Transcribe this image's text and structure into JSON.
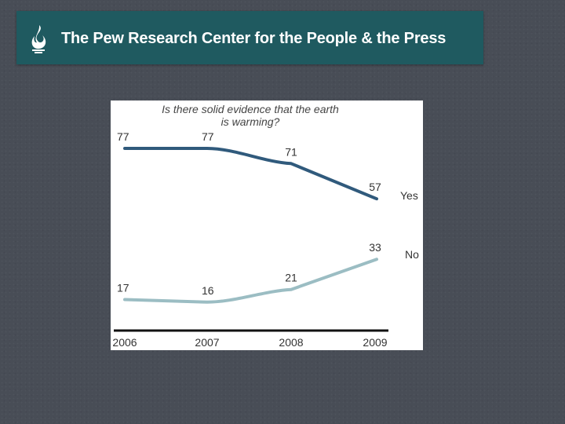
{
  "header": {
    "title": "The Pew Research Center for the People & the Press"
  },
  "chart_data": {
    "type": "line",
    "title": "Is there solid evidence that the earth is warming?",
    "x": [
      "2006",
      "2007",
      "2008",
      "2009"
    ],
    "series": [
      {
        "name": "Yes",
        "values": [
          77,
          77,
          71,
          57
        ],
        "color": "#305a7c"
      },
      {
        "name": "No",
        "values": [
          17,
          16,
          21,
          33
        ],
        "color": "#9bbdc3"
      }
    ],
    "xlabel": "",
    "ylabel": "",
    "ylim": [
      10,
      82
    ],
    "grid": false,
    "legend": "end-of-line"
  }
}
